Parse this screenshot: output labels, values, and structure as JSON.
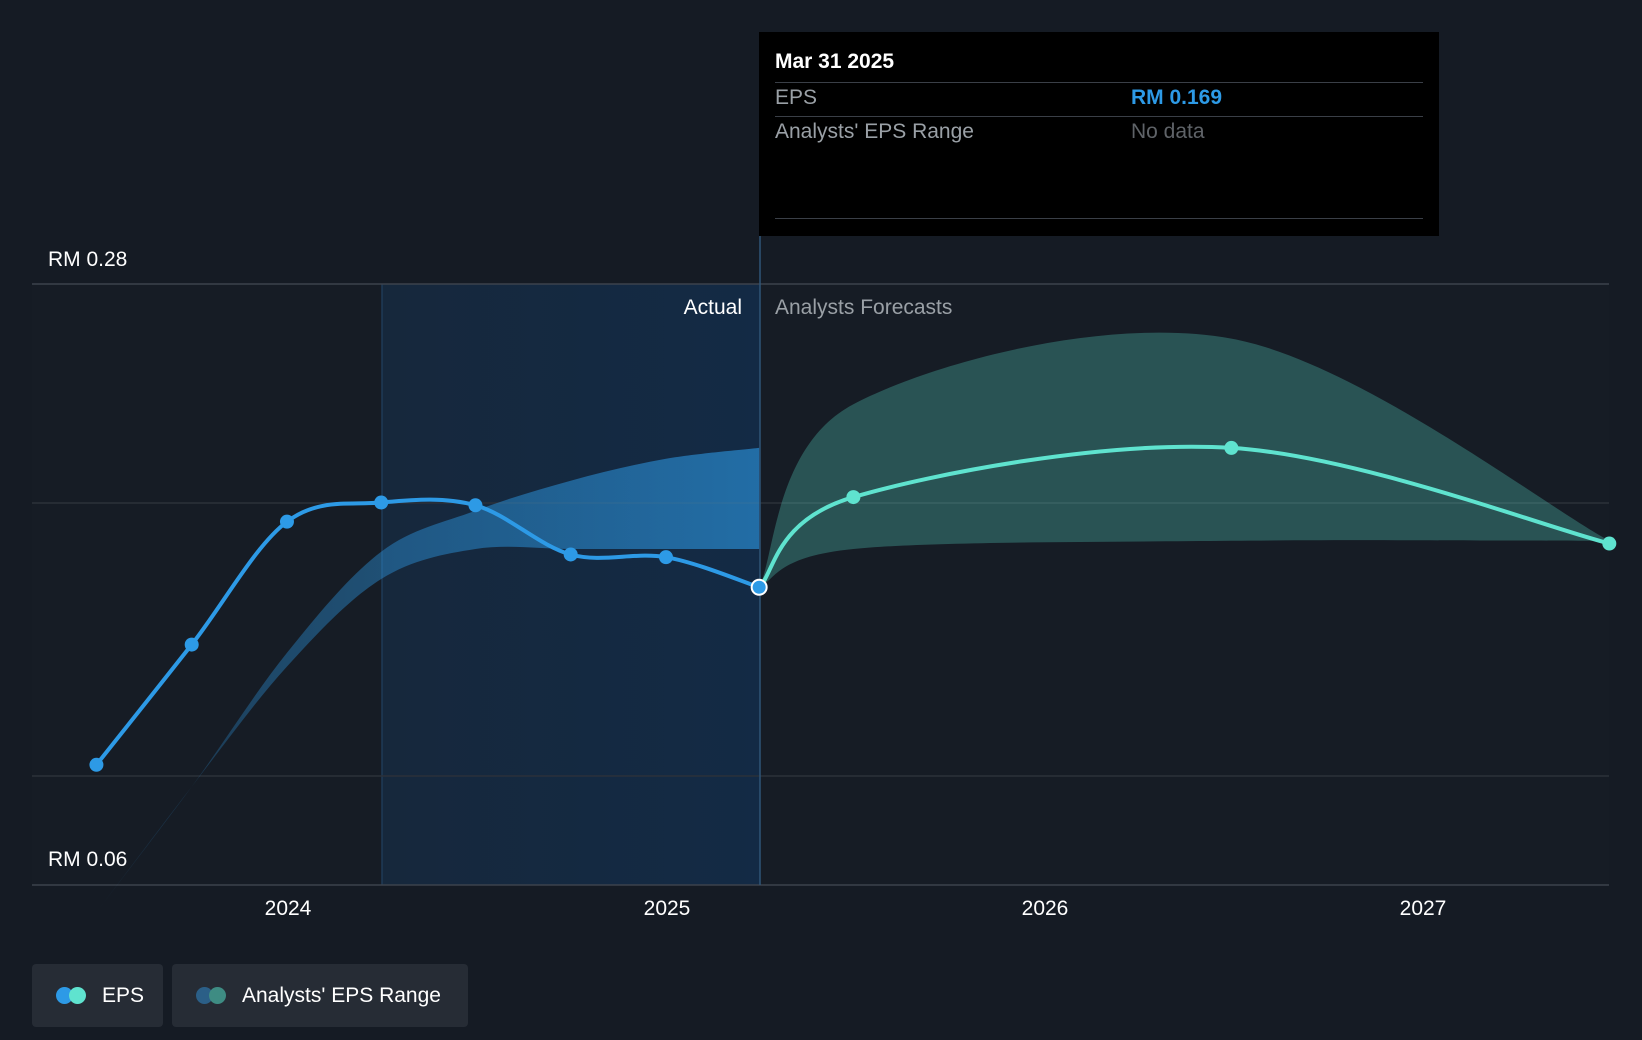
{
  "chart_data": {
    "type": "line",
    "y_top_label": "RM 0.28",
    "y_bottom_label": "RM 0.06",
    "ylim": [
      0.06,
      0.28
    ],
    "x_ticks": [
      "2024",
      "2025",
      "2026",
      "2027"
    ],
    "region_labels": {
      "actual": "Actual",
      "forecast": "Analysts Forecasts"
    },
    "series": [
      {
        "name": "EPS",
        "x": [
          "2023-06-30",
          "2023-09-30",
          "2023-12-31",
          "2024-03-31",
          "2024-06-30",
          "2024-09-30",
          "2024-12-31",
          "2025-03-31"
        ],
        "values": [
          0.104,
          0.148,
          0.193,
          0.2,
          0.199,
          0.181,
          0.18,
          0.169
        ],
        "color": "#2d9ae6"
      },
      {
        "name": "EPS (forecast)",
        "x": [
          "2025-03-31",
          "2025-06-30",
          "2026-06-30",
          "2027-06-30"
        ],
        "values": [
          0.169,
          0.202,
          0.22,
          0.185
        ],
        "color": "#5fe3cf"
      }
    ],
    "ranges": [
      {
        "name": "Analysts' EPS Range (past)",
        "x": [
          "2023-06-30",
          "2023-09-30",
          "2023-12-31",
          "2024-03-31",
          "2024-06-30",
          "2024-09-30",
          "2024-12-31",
          "2025-03-31"
        ],
        "low": [
          0.05,
          0.096,
          0.14,
          0.172,
          0.183,
          0.183,
          0.183,
          0.183
        ],
        "high": [
          0.05,
          0.096,
          0.145,
          0.182,
          0.197,
          0.208,
          0.216,
          0.22
        ],
        "color": "#2d9ae6"
      },
      {
        "name": "Analysts' EPS Range",
        "x": [
          "2025-03-31",
          "2025-06-30",
          "2026-06-30",
          "2027-06-30"
        ],
        "low": [
          0.169,
          0.183,
          0.186,
          0.186
        ],
        "high": [
          0.169,
          0.236,
          0.26,
          0.186
        ],
        "color": "#5fe3cf"
      }
    ],
    "highlight_date": "2025-03-31",
    "grid": true
  },
  "tooltip": {
    "date": "Mar 31 2025",
    "rows": [
      {
        "label": "EPS",
        "value": "RM 0.169"
      },
      {
        "label": "Analysts' EPS Range",
        "value": "No data"
      }
    ]
  },
  "legend": [
    {
      "label": "EPS",
      "colors": [
        "#2d9ae6",
        "#5fe3cf"
      ]
    },
    {
      "label": "Analysts' EPS Range",
      "colors": [
        "#2b5f87",
        "#3e8c83"
      ]
    }
  ]
}
